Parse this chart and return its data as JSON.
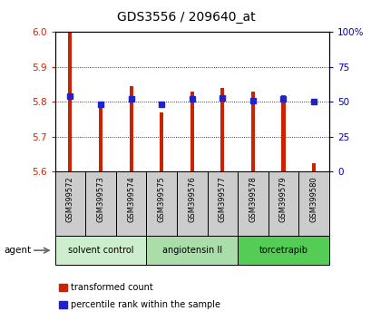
{
  "title": "GDS3556 / 209640_at",
  "samples": [
    "GSM399572",
    "GSM399573",
    "GSM399574",
    "GSM399575",
    "GSM399576",
    "GSM399577",
    "GSM399578",
    "GSM399579",
    "GSM399580"
  ],
  "bar_values": [
    6.0,
    5.795,
    5.845,
    5.77,
    5.83,
    5.84,
    5.83,
    5.82,
    5.625
  ],
  "percentile_values": [
    54,
    48,
    52,
    48,
    52,
    53,
    51,
    52,
    50
  ],
  "ymin": 5.6,
  "ymax": 6.0,
  "yticks": [
    5.6,
    5.7,
    5.8,
    5.9,
    6.0
  ],
  "right_yticks": [
    0,
    25,
    50,
    75,
    100
  ],
  "right_yticklabels": [
    "0",
    "25",
    "50",
    "75",
    "100%"
  ],
  "bar_color": "#cc2200",
  "percentile_color": "#2222cc",
  "bar_width": 0.12,
  "groups": [
    {
      "label": "solvent control",
      "start": 0,
      "end": 3,
      "color": "#cceecc"
    },
    {
      "label": "angiotensin II",
      "start": 3,
      "end": 6,
      "color": "#aaddaa"
    },
    {
      "label": "torcetrapib",
      "start": 6,
      "end": 9,
      "color": "#55cc55"
    }
  ],
  "legend_items": [
    {
      "label": "transformed count",
      "color": "#cc2200"
    },
    {
      "label": "percentile rank within the sample",
      "color": "#2222cc"
    }
  ],
  "agent_label": "agent",
  "tick_label_color_left": "#cc2200",
  "tick_label_color_right": "#0000bb"
}
